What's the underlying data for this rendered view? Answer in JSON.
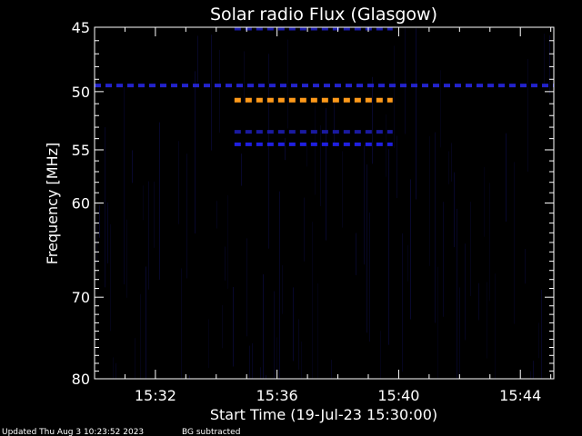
{
  "chart_data": {
    "type": "heatmap",
    "title": "Solar radio Flux (Glasgow)",
    "xlabel": "Start Time (19-Jul-23 15:30:00)",
    "ylabel": "Frequency [MHz]",
    "x_unit": "minutes after 15:30:00",
    "xlim": [
      0,
      15.1
    ],
    "ylim": [
      45,
      80
    ],
    "x_ticks": [
      {
        "value": 2,
        "label": "15:32"
      },
      {
        "value": 6,
        "label": "15:36"
      },
      {
        "value": 10,
        "label": "15:40"
      },
      {
        "value": 14,
        "label": "15:44"
      }
    ],
    "y_ticks": [
      {
        "value": 45,
        "label": "45"
      },
      {
        "value": 50,
        "label": "50"
      },
      {
        "value": 55,
        "label": "55"
      },
      {
        "value": 60,
        "label": "60"
      },
      {
        "value": 70,
        "label": "70"
      },
      {
        "value": 80,
        "label": "80"
      }
    ],
    "bands": [
      {
        "freq": 45.1,
        "x_start": 4.6,
        "x_end": 9.8,
        "color": "#1a1aa8"
      },
      {
        "freq": 49.5,
        "x_start": 0.0,
        "x_end": 15.1,
        "color": "#2323cc"
      },
      {
        "freq": 50.7,
        "x_start": 4.6,
        "x_end": 9.8,
        "color": "#ff9a1a"
      },
      {
        "freq": 53.4,
        "x_start": 4.6,
        "x_end": 9.8,
        "color": "#1a1aa0"
      },
      {
        "freq": 54.5,
        "x_start": 4.6,
        "x_end": 9.8,
        "color": "#1f1fe0"
      }
    ],
    "colors": {
      "background": "#000000",
      "foreground": "#ffffff",
      "noise": "#0a0a3a"
    }
  },
  "footer": {
    "updated": "Updated Thu Aug  3 10:23:52 2023",
    "note": "BG subtracted"
  }
}
